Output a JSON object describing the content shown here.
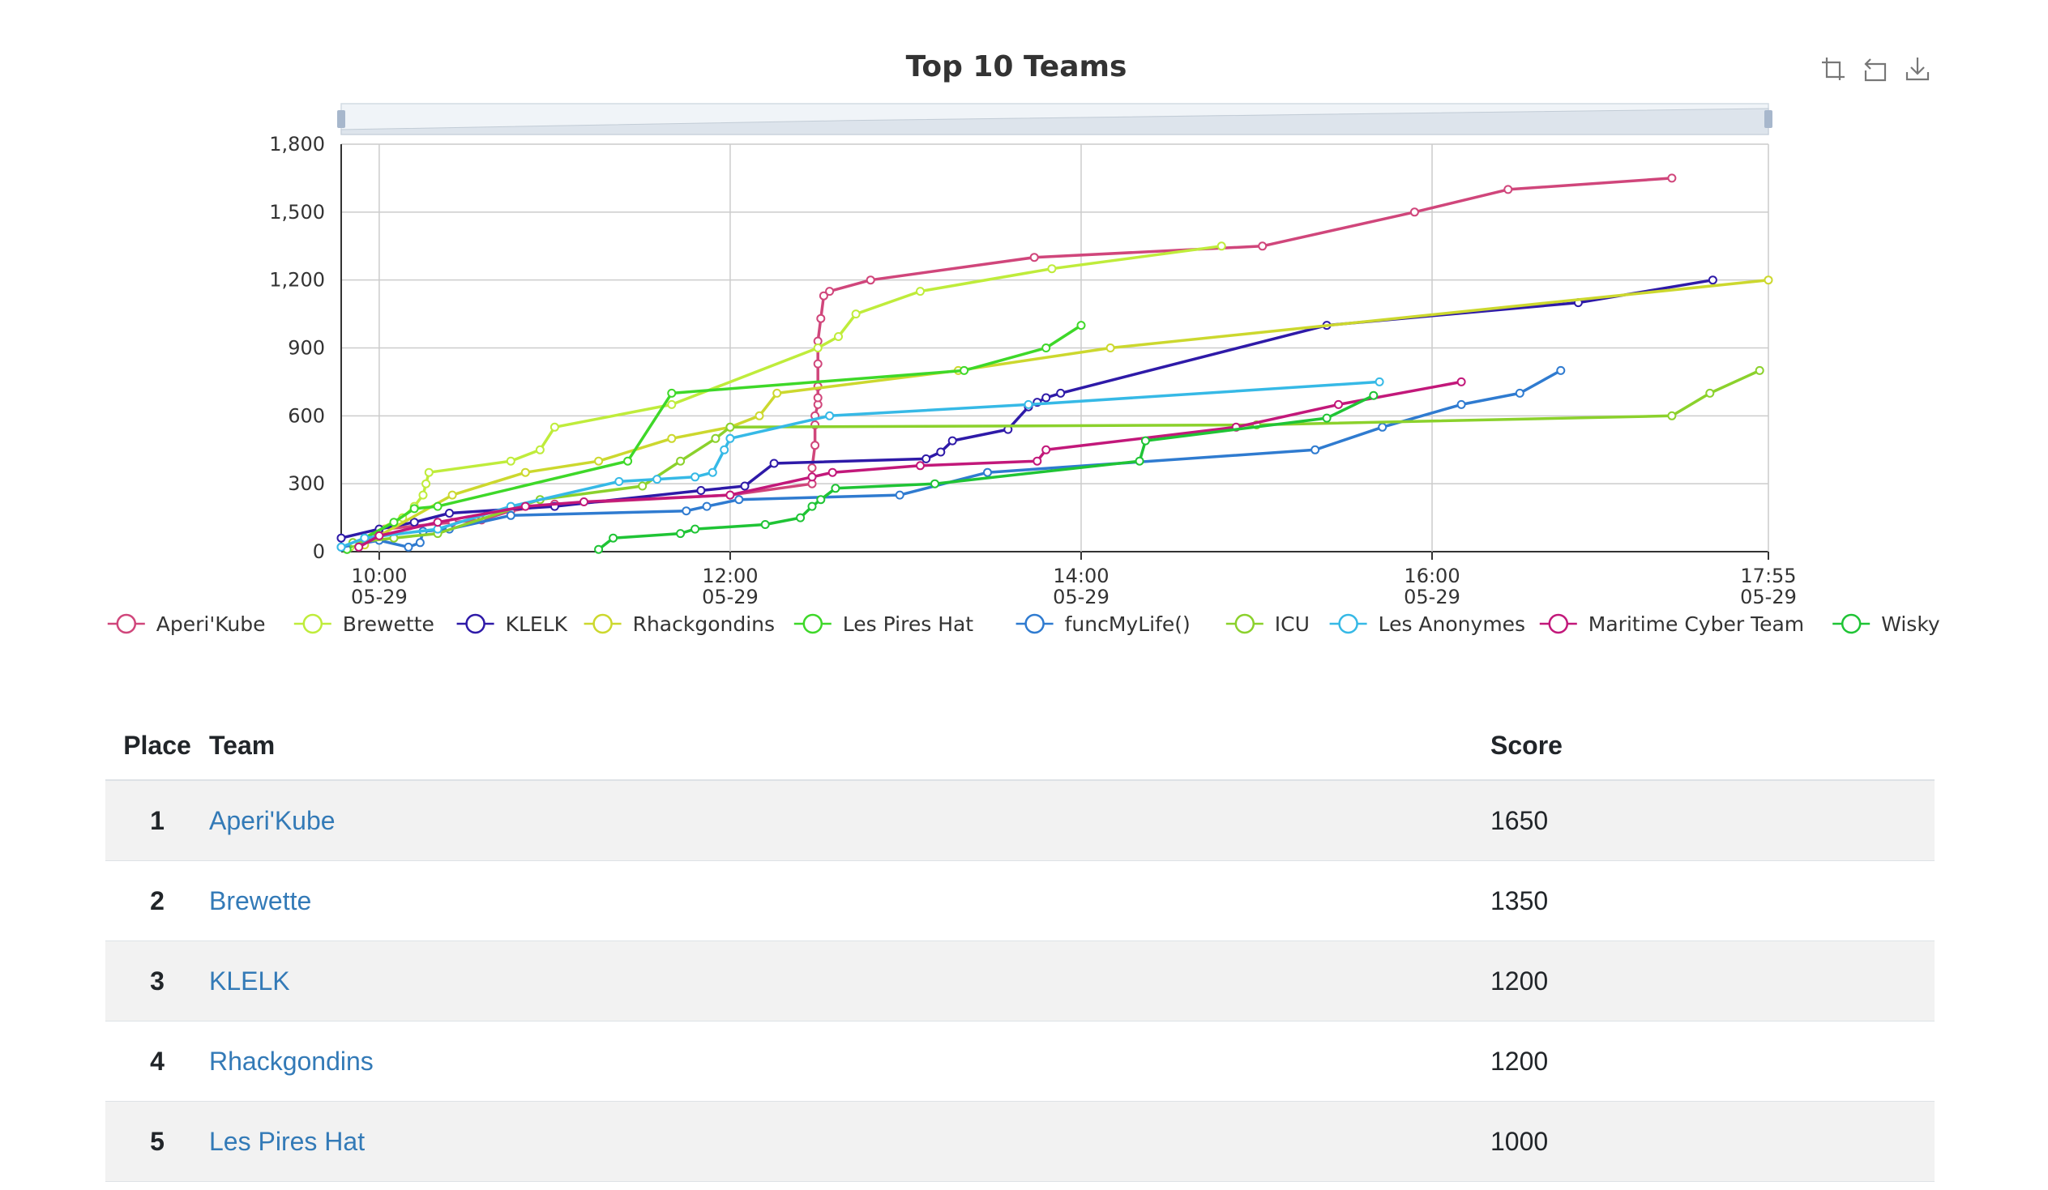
{
  "chart_data": {
    "type": "line",
    "title": "Top 10 Teams",
    "ylim": [
      0,
      1800
    ],
    "yticks": [
      0,
      300,
      600,
      900,
      1200,
      1500,
      1800
    ],
    "ytick_labels": [
      "0",
      "300",
      "600",
      "900",
      "1,200",
      "1,500",
      "1,800"
    ],
    "x_start": "09:47",
    "x_end": "17:55",
    "xticks": [
      {
        "time": "10:00",
        "date": "05-29"
      },
      {
        "time": "12:00",
        "date": "05-29"
      },
      {
        "time": "14:00",
        "date": "05-29"
      },
      {
        "time": "16:00",
        "date": "05-29"
      },
      {
        "time": "17:55",
        "date": "05-29"
      }
    ],
    "grid": true,
    "legend_position": "bottom",
    "series": [
      {
        "name": "Aperi'Kube",
        "color": "#d0467b",
        "points": [
          [
            "09:49",
            10
          ],
          [
            "09:58",
            60
          ],
          [
            "10:02",
            100
          ],
          [
            "10:25",
            130
          ],
          [
            "10:35",
            140
          ],
          [
            "10:45",
            180
          ],
          [
            "11:00",
            210
          ],
          [
            "12:00",
            250
          ],
          [
            "12:28",
            300
          ],
          [
            "12:28",
            370
          ],
          [
            "12:29",
            470
          ],
          [
            "12:29",
            560
          ],
          [
            "12:29",
            600
          ],
          [
            "12:30",
            650
          ],
          [
            "12:30",
            680
          ],
          [
            "12:30",
            730
          ],
          [
            "12:30",
            830
          ],
          [
            "12:30",
            930
          ],
          [
            "12:31",
            1030
          ],
          [
            "12:32",
            1130
          ],
          [
            "12:34",
            1150
          ],
          [
            "12:48",
            1200
          ],
          [
            "13:44",
            1300
          ],
          [
            "15:02",
            1350
          ],
          [
            "15:54",
            1500
          ],
          [
            "16:26",
            1600
          ],
          [
            "17:22",
            1650
          ]
        ]
      },
      {
        "name": "Brewette",
        "color": "#bfec3b",
        "points": [
          [
            "09:50",
            20
          ],
          [
            "10:00",
            100
          ],
          [
            "10:08",
            150
          ],
          [
            "10:12",
            200
          ],
          [
            "10:15",
            250
          ],
          [
            "10:16",
            300
          ],
          [
            "10:17",
            350
          ],
          [
            "10:45",
            400
          ],
          [
            "10:55",
            450
          ],
          [
            "11:00",
            550
          ],
          [
            "11:40",
            650
          ],
          [
            "12:30",
            900
          ],
          [
            "12:37",
            950
          ],
          [
            "12:43",
            1050
          ],
          [
            "13:05",
            1150
          ],
          [
            "13:50",
            1250
          ],
          [
            "14:48",
            1350
          ]
        ]
      },
      {
        "name": "KLELK",
        "color": "#2e1aa8",
        "points": [
          [
            "09:47",
            60
          ],
          [
            "10:00",
            100
          ],
          [
            "10:12",
            130
          ],
          [
            "10:24",
            170
          ],
          [
            "11:00",
            200
          ],
          [
            "11:50",
            270
          ],
          [
            "12:05",
            290
          ],
          [
            "12:15",
            390
          ],
          [
            "13:07",
            410
          ],
          [
            "13:12",
            440
          ],
          [
            "13:16",
            490
          ],
          [
            "13:35",
            540
          ],
          [
            "13:42",
            640
          ],
          [
            "13:45",
            660
          ],
          [
            "13:48",
            680
          ],
          [
            "13:53",
            700
          ],
          [
            "15:24",
            1000
          ],
          [
            "16:50",
            1100
          ],
          [
            "17:36",
            1200
          ]
        ]
      },
      {
        "name": "Rhackgondins",
        "color": "#ccd82e",
        "points": [
          [
            "09:55",
            30
          ],
          [
            "10:00",
            70
          ],
          [
            "10:25",
            250
          ],
          [
            "10:50",
            350
          ],
          [
            "11:15",
            400
          ],
          [
            "11:40",
            500
          ],
          [
            "12:00",
            550
          ],
          [
            "12:10",
            600
          ],
          [
            "12:16",
            700
          ],
          [
            "13:18",
            800
          ],
          [
            "14:10",
            900
          ],
          [
            "17:55",
            1200
          ]
        ]
      },
      {
        "name": "Les Pires Hat",
        "color": "#3ed829",
        "points": [
          [
            "09:49",
            10
          ],
          [
            "09:55",
            60
          ],
          [
            "10:05",
            130
          ],
          [
            "10:12",
            190
          ],
          [
            "10:20",
            200
          ],
          [
            "11:25",
            400
          ],
          [
            "11:40",
            700
          ],
          [
            "13:20",
            800
          ],
          [
            "13:48",
            900
          ],
          [
            "14:00",
            1000
          ]
        ]
      },
      {
        "name": "funcMyLife()",
        "color": "#2f7bd0",
        "points": [
          [
            "09:47",
            20
          ],
          [
            "10:00",
            50
          ],
          [
            "10:10",
            20
          ],
          [
            "10:14",
            40
          ],
          [
            "10:15",
            90
          ],
          [
            "10:24",
            100
          ],
          [
            "10:45",
            160
          ],
          [
            "11:45",
            180
          ],
          [
            "11:52",
            200
          ],
          [
            "12:03",
            230
          ],
          [
            "12:58",
            250
          ],
          [
            "13:28",
            350
          ],
          [
            "15:20",
            450
          ],
          [
            "15:43",
            550
          ],
          [
            "16:10",
            650
          ],
          [
            "16:30",
            700
          ],
          [
            "16:44",
            800
          ]
        ]
      },
      {
        "name": "ICU",
        "color": "#8bd12c",
        "points": [
          [
            "09:51",
            40
          ],
          [
            "10:05",
            60
          ],
          [
            "10:20",
            80
          ],
          [
            "10:55",
            230
          ],
          [
            "11:30",
            290
          ],
          [
            "11:43",
            400
          ],
          [
            "11:55",
            500
          ],
          [
            "12:00",
            550
          ],
          [
            "15:00",
            560
          ],
          [
            "17:22",
            600
          ],
          [
            "17:35",
            700
          ],
          [
            "17:52",
            800
          ]
        ]
      },
      {
        "name": "Les Anonymes",
        "color": "#36b9e6",
        "points": [
          [
            "09:47",
            20
          ],
          [
            "09:55",
            60
          ],
          [
            "10:20",
            100
          ],
          [
            "10:45",
            200
          ],
          [
            "11:22",
            310
          ],
          [
            "11:35",
            320
          ],
          [
            "11:48",
            330
          ],
          [
            "11:54",
            350
          ],
          [
            "11:58",
            450
          ],
          [
            "12:00",
            500
          ],
          [
            "12:34",
            600
          ],
          [
            "13:42",
            650
          ],
          [
            "15:42",
            750
          ]
        ]
      },
      {
        "name": "Maritime Cyber Team",
        "color": "#c2187a",
        "points": [
          [
            "09:53",
            20
          ],
          [
            "10:00",
            70
          ],
          [
            "10:20",
            130
          ],
          [
            "10:50",
            200
          ],
          [
            "11:10",
            220
          ],
          [
            "12:00",
            250
          ],
          [
            "12:28",
            330
          ],
          [
            "12:35",
            350
          ],
          [
            "13:05",
            380
          ],
          [
            "13:45",
            400
          ],
          [
            "13:48",
            450
          ],
          [
            "14:53",
            550
          ],
          [
            "15:28",
            650
          ],
          [
            "16:10",
            750
          ]
        ]
      },
      {
        "name": "Wisky",
        "color": "#1fc435",
        "points": [
          [
            "11:15",
            10
          ],
          [
            "11:20",
            60
          ],
          [
            "11:43",
            80
          ],
          [
            "11:48",
            100
          ],
          [
            "12:12",
            120
          ],
          [
            "12:24",
            150
          ],
          [
            "12:28",
            200
          ],
          [
            "12:31",
            230
          ],
          [
            "12:36",
            280
          ],
          [
            "13:10",
            300
          ],
          [
            "14:20",
            400
          ],
          [
            "14:22",
            490
          ],
          [
            "15:24",
            590
          ],
          [
            "15:40",
            690
          ]
        ]
      }
    ]
  },
  "table": {
    "headers": {
      "place": "Place",
      "team": "Team",
      "score": "Score"
    },
    "rows": [
      {
        "place": "1",
        "team": "Aperi'Kube",
        "score": "1650"
      },
      {
        "place": "2",
        "team": "Brewette",
        "score": "1350"
      },
      {
        "place": "3",
        "team": "KLELK",
        "score": "1200"
      },
      {
        "place": "4",
        "team": "Rhackgondins",
        "score": "1200"
      },
      {
        "place": "5",
        "team": "Les Pires Hat",
        "score": "1000"
      }
    ]
  },
  "toolbox": {
    "icons": [
      "zoom-icon",
      "restore-icon",
      "download-icon"
    ]
  }
}
